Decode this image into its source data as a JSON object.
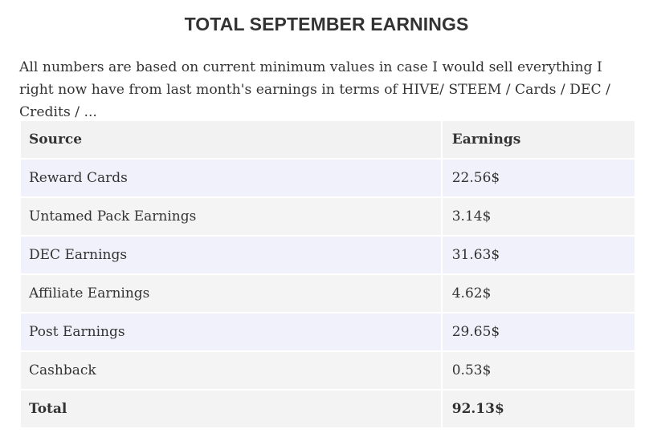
{
  "heading": "TOTAL SEPTEMBER EARNINGS",
  "intro": "All numbers are based on current minimum values in case I would sell everything I right now have from last month's earnings in terms of HIVE/ STEEM / Cards / DEC / Credits / ...",
  "table": {
    "headers": [
      "Source",
      "Earnings"
    ],
    "rows": [
      [
        "Reward Cards",
        "22.56$"
      ],
      [
        "Untamed Pack Earnings",
        "3.14$"
      ],
      [
        "DEC Earnings",
        "31.63$"
      ],
      [
        "Affiliate Earnings",
        "4.62$"
      ],
      [
        "Post Earnings",
        "29.65$"
      ],
      [
        "Cashback",
        "0.53$"
      ],
      [
        "Total",
        "92.13$"
      ]
    ]
  }
}
